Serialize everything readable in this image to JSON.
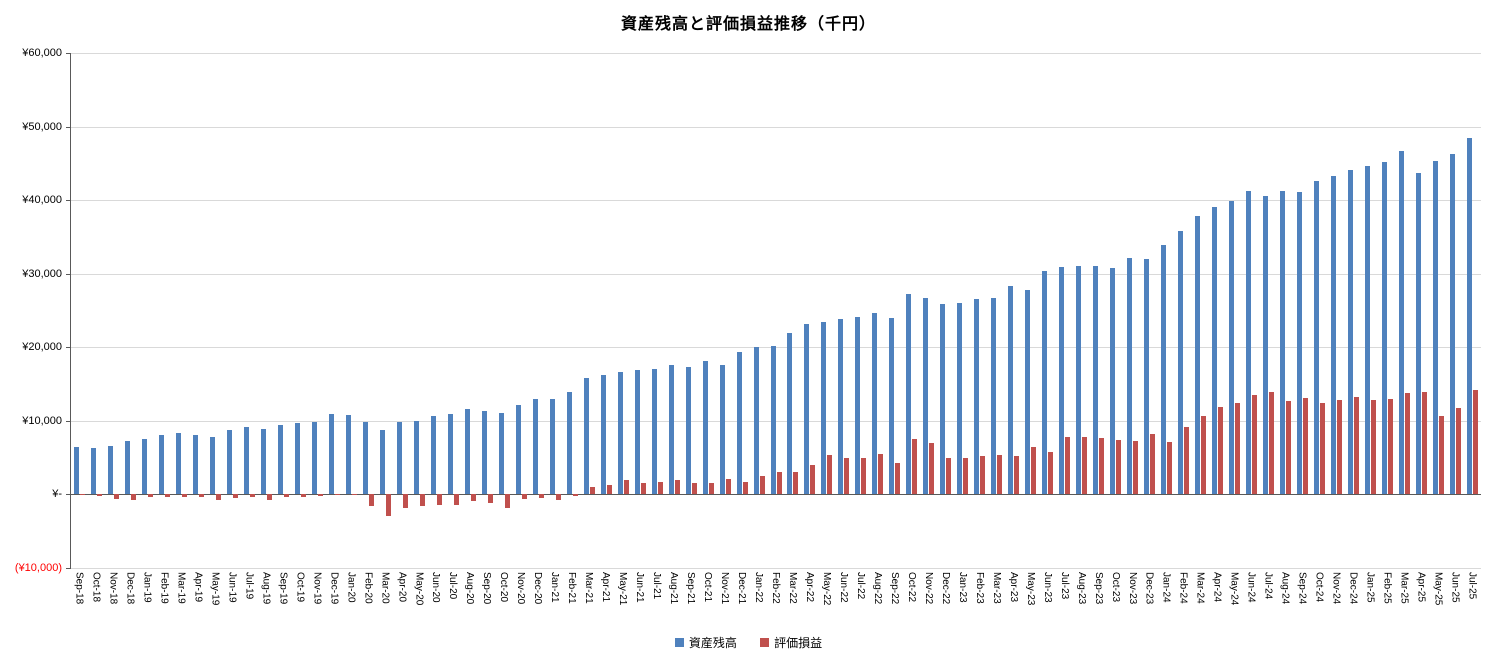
{
  "title": "資産残高と評価損益推移（千円）",
  "chart_data": {
    "type": "bar",
    "title": "資産残高と評価損益推移（千円）",
    "grid": true,
    "legend_position": "bottom",
    "ylim": [
      -10000,
      60000
    ],
    "ytick_step": 10000,
    "ytick_labels": [
      "(¥10,000)",
      "¥-",
      "¥10,000",
      "¥20,000",
      "¥30,000",
      "¥40,000",
      "¥50,000",
      "¥60,000"
    ],
    "negative_label_color": "#ff0000",
    "categories": [
      "Sep-18",
      "Oct-18",
      "Nov-18",
      "Dec-18",
      "Jan-19",
      "Feb-19",
      "Mar-19",
      "Apr-19",
      "May-19",
      "Jun-19",
      "Jul-19",
      "Aug-19",
      "Sep-19",
      "Oct-19",
      "Nov-19",
      "Dec-19",
      "Jan-20",
      "Feb-20",
      "Mar-20",
      "Apr-20",
      "May-20",
      "Jun-20",
      "Jul-20",
      "Aug-20",
      "Sep-20",
      "Oct-20",
      "Nov-20",
      "Dec-20",
      "Jan-21",
      "Feb-21",
      "Mar-21",
      "Apr-21",
      "May-21",
      "Jun-21",
      "Jul-21",
      "Aug-21",
      "Sep-21",
      "Oct-21",
      "Nov-21",
      "Dec-21",
      "Jan-22",
      "Feb-22",
      "Mar-22",
      "Apr-22",
      "May-22",
      "Jun-22",
      "Jul-22",
      "Aug-22",
      "Sep-22",
      "Oct-22",
      "Nov-22",
      "Dec-22",
      "Jan-23",
      "Feb-23",
      "Mar-23",
      "Apr-23",
      "May-23",
      "Jun-23",
      "Jul-23",
      "Aug-23",
      "Sep-23",
      "Oct-23",
      "Nov-23",
      "Dec-23",
      "Jan-24",
      "Feb-24",
      "Mar-24",
      "Apr-24",
      "May-24",
      "Jun-24",
      "Jul-24",
      "Aug-24",
      "Sep-24",
      "Oct-24",
      "Nov-24",
      "Dec-24",
      "Jan-25",
      "Feb-25",
      "Mar-25",
      "Apr-25",
      "May-25",
      "Jun-25",
      "Jul-25"
    ],
    "series": [
      {
        "name": "資産残高",
        "key": "asset-balance",
        "color": "#4F81BD",
        "values": [
          6400,
          6300,
          6600,
          7300,
          7600,
          8100,
          8300,
          8100,
          7800,
          8700,
          9200,
          8900,
          9500,
          9700,
          9900,
          10900,
          10800,
          9900,
          8700,
          9900,
          10000,
          10600,
          11000,
          11600,
          11400,
          11100,
          12100,
          13000,
          13000,
          13900,
          15800,
          16300,
          16600,
          16900,
          17100,
          17600,
          17300,
          18100,
          17600,
          19400,
          20000,
          20200,
          21900,
          23100,
          23400,
          23800,
          24100,
          24600,
          24000,
          27200,
          26700,
          25900,
          26000,
          26600,
          26700,
          28300,
          27800,
          30400,
          30900,
          31000,
          31000,
          30800,
          32200,
          32000,
          33900,
          35800,
          37900,
          39100,
          39900,
          41300,
          40600,
          41300,
          41100,
          42600,
          43300,
          44100,
          44600,
          45200,
          46700,
          43700,
          45300,
          46300,
          48500
        ]
      },
      {
        "name": "評価損益",
        "key": "valuation-pnl",
        "color": "#C0504D",
        "values": [
          -100,
          -200,
          -600,
          -800,
          -400,
          -300,
          -400,
          -400,
          -800,
          -500,
          -400,
          -800,
          -400,
          -400,
          -200,
          100,
          -100,
          -1600,
          -2900,
          -1900,
          -1600,
          -1500,
          -1400,
          -900,
          -1200,
          -1800,
          -600,
          -500,
          -700,
          -200,
          1000,
          1300,
          1900,
          1500,
          1700,
          1900,
          1500,
          1600,
          2100,
          1700,
          2500,
          3100,
          3000,
          4000,
          5300,
          4900,
          5000,
          5500,
          4300,
          7500,
          7000,
          5000,
          5000,
          5200,
          5300,
          5200,
          6400,
          5700,
          7800,
          7800,
          7700,
          7400,
          7300,
          8200,
          7100,
          9100,
          10600,
          11900,
          12400,
          13500,
          13900,
          12700,
          13100,
          12400,
          12900,
          13300,
          12900,
          13000,
          13800,
          13900,
          10600,
          11700,
          14200
        ]
      }
    ]
  },
  "legend": {
    "items": [
      {
        "label": "資産残高",
        "color": "#4F81BD"
      },
      {
        "label": "評価損益",
        "color": "#C0504D"
      }
    ]
  }
}
